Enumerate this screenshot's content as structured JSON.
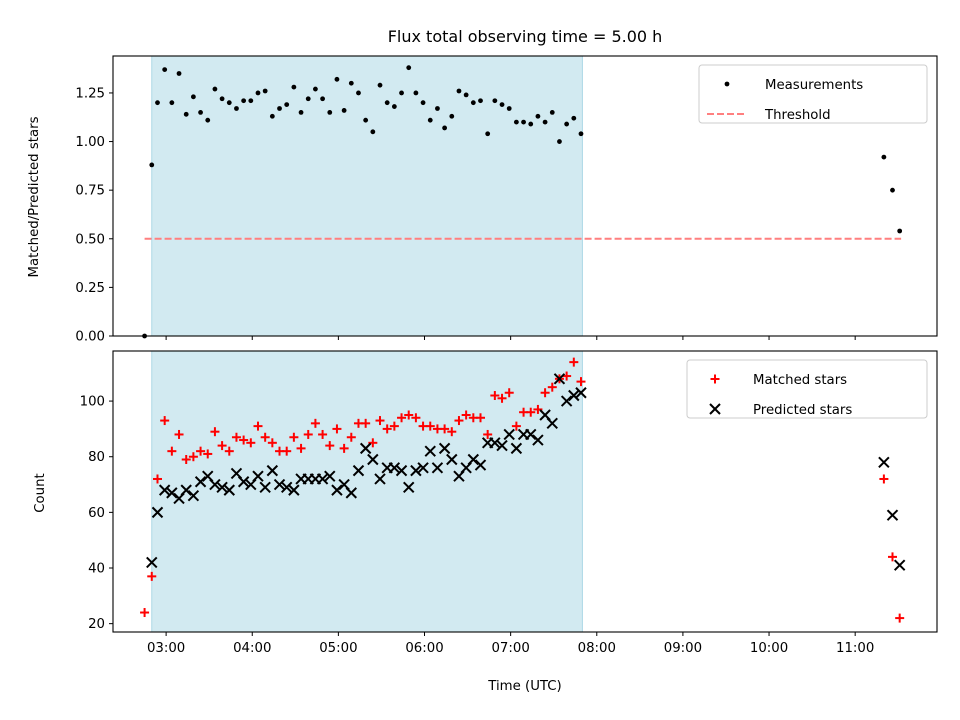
{
  "title": "Flux total observing time = 5.00 h",
  "colors": {
    "observing_band": "#add8e6",
    "measurements": "#000000",
    "threshold": "#ff7f7f",
    "matched": "#ff0000",
    "predicted": "#000000"
  },
  "chart_data": [
    {
      "type": "scatter",
      "ylabel": "Matched/Predicted stars",
      "ylim": [
        0,
        1.44
      ],
      "yticks": [
        "0.00",
        "0.25",
        "0.50",
        "0.75",
        "1.00",
        "1.25"
      ],
      "xlim": [
        "02:23",
        "11:57"
      ],
      "shaded_interval": [
        "02:50",
        "07:50"
      ],
      "legend": {
        "position": "top-right",
        "entries": [
          "Measurements",
          "Threshold"
        ]
      },
      "threshold": {
        "name": "Threshold",
        "value": 0.5,
        "x_range": [
          "02:45",
          "11:32"
        ]
      },
      "series": [
        {
          "name": "Measurements",
          "x": [
            "02:45",
            "02:50",
            "02:54",
            "02:59",
            "03:04",
            "03:09",
            "03:14",
            "03:19",
            "03:24",
            "03:29",
            "03:34",
            "03:39",
            "03:44",
            "03:49",
            "03:54",
            "03:59",
            "04:04",
            "04:09",
            "04:14",
            "04:19",
            "04:24",
            "04:29",
            "04:34",
            "04:39",
            "04:44",
            "04:49",
            "04:54",
            "04:59",
            "05:04",
            "05:09",
            "05:14",
            "05:19",
            "05:24",
            "05:29",
            "05:34",
            "05:39",
            "05:44",
            "05:49",
            "05:54",
            "05:59",
            "06:04",
            "06:09",
            "06:14",
            "06:19",
            "06:24",
            "06:29",
            "06:34",
            "06:39",
            "06:44",
            "06:49",
            "06:54",
            "06:59",
            "07:04",
            "07:09",
            "07:14",
            "07:19",
            "07:24",
            "07:29",
            "07:34",
            "07:39",
            "07:44",
            "07:49",
            "11:20",
            "11:26",
            "11:31"
          ],
          "y": [
            0.0,
            0.88,
            1.2,
            1.37,
            1.2,
            1.35,
            1.14,
            1.23,
            1.15,
            1.11,
            1.27,
            1.22,
            1.2,
            1.17,
            1.21,
            1.21,
            1.25,
            1.26,
            1.13,
            1.17,
            1.19,
            1.28,
            1.15,
            1.22,
            1.27,
            1.22,
            1.15,
            1.32,
            1.16,
            1.3,
            1.25,
            1.11,
            1.05,
            1.29,
            1.2,
            1.18,
            1.25,
            1.38,
            1.25,
            1.2,
            1.11,
            1.17,
            1.07,
            1.13,
            1.26,
            1.24,
            1.2,
            1.21,
            1.04,
            1.21,
            1.19,
            1.17,
            1.1,
            1.1,
            1.09,
            1.13,
            1.1,
            1.15,
            1.0,
            1.09,
            1.12,
            1.04,
            0.92,
            0.75,
            0.54
          ]
        }
      ]
    },
    {
      "type": "scatter",
      "xlabel": "Time (UTC)",
      "ylabel": "Count",
      "ylim": [
        17,
        118
      ],
      "yticks": [
        "20",
        "40",
        "60",
        "80",
        "100"
      ],
      "xlim": [
        "02:23",
        "11:57"
      ],
      "xticks": [
        "03:00",
        "04:00",
        "05:00",
        "06:00",
        "07:00",
        "08:00",
        "09:00",
        "10:00",
        "11:00"
      ],
      "shaded_interval": [
        "02:50",
        "07:50"
      ],
      "legend": {
        "position": "top-right",
        "entries": [
          "Matched stars",
          "Predicted stars"
        ]
      },
      "series": [
        {
          "name": "Matched stars",
          "x": [
            "02:45",
            "02:50",
            "02:54",
            "02:59",
            "03:04",
            "03:09",
            "03:14",
            "03:19",
            "03:24",
            "03:29",
            "03:34",
            "03:39",
            "03:44",
            "03:49",
            "03:54",
            "03:59",
            "04:04",
            "04:09",
            "04:14",
            "04:19",
            "04:24",
            "04:29",
            "04:34",
            "04:39",
            "04:44",
            "04:49",
            "04:54",
            "04:59",
            "05:04",
            "05:09",
            "05:14",
            "05:19",
            "05:24",
            "05:29",
            "05:34",
            "05:39",
            "05:44",
            "05:49",
            "05:54",
            "05:59",
            "06:04",
            "06:09",
            "06:14",
            "06:19",
            "06:24",
            "06:29",
            "06:34",
            "06:39",
            "06:44",
            "06:49",
            "06:54",
            "06:59",
            "07:04",
            "07:09",
            "07:14",
            "07:19",
            "07:24",
            "07:29",
            "07:34",
            "07:39",
            "07:44",
            "07:49",
            "11:20",
            "11:26",
            "11:31"
          ],
          "y": [
            24,
            37,
            72,
            93,
            82,
            88,
            79,
            80,
            82,
            81,
            89,
            84,
            82,
            87,
            86,
            85,
            91,
            87,
            85,
            82,
            82,
            87,
            83,
            88,
            92,
            88,
            84,
            90,
            83,
            87,
            92,
            92,
            85,
            93,
            90,
            91,
            94,
            95,
            94,
            91,
            91,
            90,
            90,
            89,
            93,
            95,
            94,
            94,
            88,
            102,
            101,
            103,
            91,
            96,
            96,
            97,
            103,
            105,
            108,
            109,
            114,
            107,
            72,
            44,
            22
          ]
        },
        {
          "name": "Predicted stars",
          "x": [
            "02:50",
            "02:54",
            "02:59",
            "03:04",
            "03:09",
            "03:14",
            "03:19",
            "03:24",
            "03:29",
            "03:34",
            "03:39",
            "03:44",
            "03:49",
            "03:54",
            "03:59",
            "04:04",
            "04:09",
            "04:14",
            "04:19",
            "04:24",
            "04:29",
            "04:34",
            "04:39",
            "04:44",
            "04:49",
            "04:54",
            "04:59",
            "05:04",
            "05:09",
            "05:14",
            "05:19",
            "05:24",
            "05:29",
            "05:34",
            "05:39",
            "05:44",
            "05:49",
            "05:54",
            "05:59",
            "06:04",
            "06:09",
            "06:14",
            "06:19",
            "06:24",
            "06:29",
            "06:34",
            "06:39",
            "06:44",
            "06:49",
            "06:54",
            "06:59",
            "07:04",
            "07:09",
            "07:14",
            "07:19",
            "07:24",
            "07:29",
            "07:34",
            "07:39",
            "07:44",
            "07:49",
            "11:20",
            "11:26",
            "11:31"
          ],
          "y": [
            42,
            60,
            68,
            67,
            65,
            68,
            66,
            71,
            73,
            70,
            69,
            68,
            74,
            71,
            70,
            73,
            69,
            75,
            70,
            69,
            68,
            72,
            72,
            72,
            72,
            73,
            68,
            70,
            67,
            75,
            83,
            79,
            72,
            76,
            76,
            75,
            69,
            75,
            76,
            82,
            76,
            83,
            79,
            73,
            76,
            79,
            77,
            85,
            85,
            84,
            88,
            83,
            88,
            88,
            86,
            95,
            92,
            108,
            100,
            102,
            103,
            78,
            59,
            41
          ]
        }
      ]
    }
  ]
}
